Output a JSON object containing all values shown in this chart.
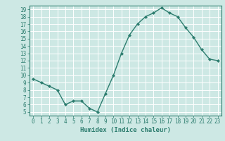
{
  "x": [
    0,
    1,
    2,
    3,
    4,
    5,
    6,
    7,
    8,
    9,
    10,
    11,
    12,
    13,
    14,
    15,
    16,
    17,
    18,
    19,
    20,
    21,
    22,
    23
  ],
  "y": [
    9.5,
    9.0,
    8.5,
    8.0,
    6.0,
    6.5,
    6.5,
    5.5,
    5.0,
    7.5,
    10.0,
    13.0,
    15.5,
    17.0,
    18.0,
    18.5,
    19.2,
    18.5,
    18.0,
    16.5,
    15.2,
    13.5,
    12.2,
    12.0
  ],
  "xlabel": "Humidex (Indice chaleur)",
  "xlim": [
    -0.5,
    23.5
  ],
  "ylim": [
    4.5,
    19.5
  ],
  "yticks": [
    5,
    6,
    7,
    8,
    9,
    10,
    11,
    12,
    13,
    14,
    15,
    16,
    17,
    18,
    19
  ],
  "xticks": [
    0,
    1,
    2,
    3,
    4,
    5,
    6,
    7,
    8,
    9,
    10,
    11,
    12,
    13,
    14,
    15,
    16,
    17,
    18,
    19,
    20,
    21,
    22,
    23
  ],
  "line_color": "#2d7d6f",
  "marker_color": "#2d7d6f",
  "bg_color": "#cde8e4",
  "grid_color": "#ffffff",
  "label_color": "#2d7d6f",
  "tick_fontsize": 5.5,
  "xlabel_fontsize": 6.5
}
